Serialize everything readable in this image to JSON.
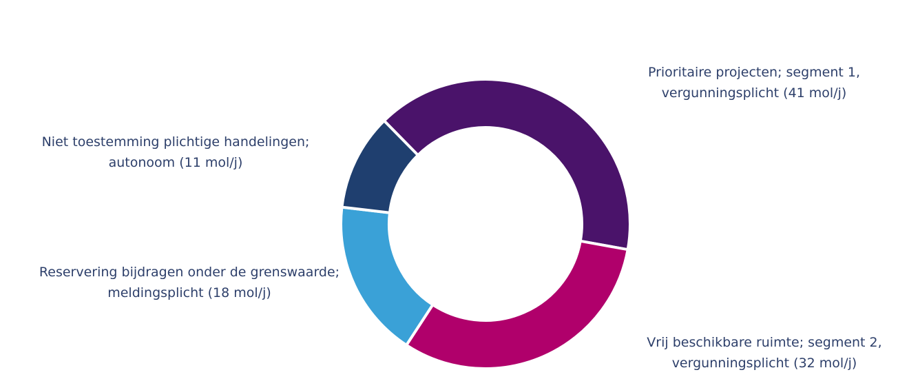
{
  "chart_data": {
    "type": "donut",
    "categories": [
      "Prioritaire projecten; segment 1, vergunningsplicht (41 mol/j)",
      "Vrij beschikbare ruimte; segment 2, vergunningsplicht (32 mol/j)",
      "Reservering bijdragen onder de grenswaarde; meldingsplicht (18 mol/j)",
      "Niet toestemming plichtige handelingen; autonoom (11 mol/j)"
    ],
    "values": [
      41,
      32,
      18,
      11
    ],
    "colors": [
      "#4a136a",
      "#b0006b",
      "#3aa1d7",
      "#1f3f6f"
    ]
  }
}
